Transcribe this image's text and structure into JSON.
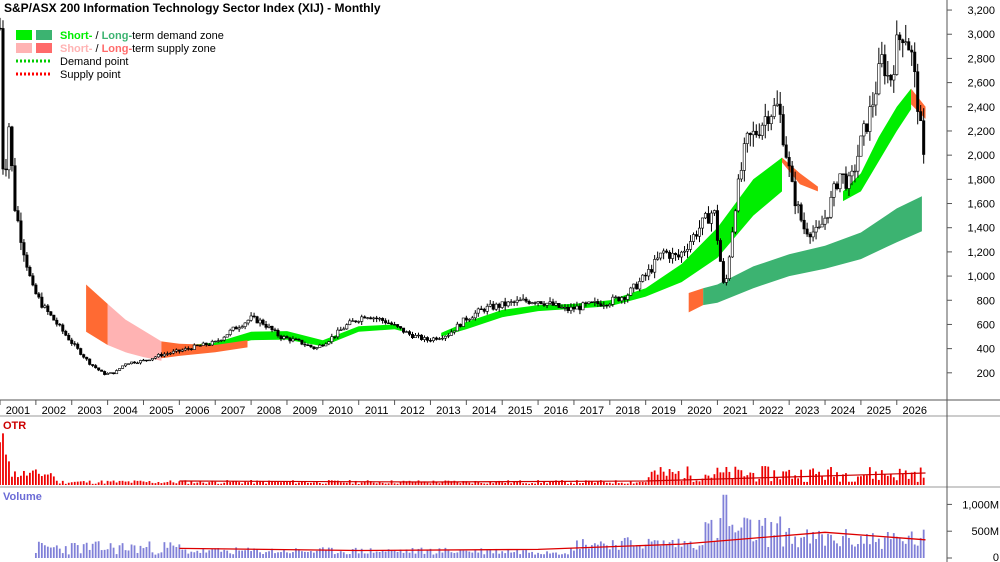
{
  "chart_data": {
    "type": "line",
    "title": "S&P/ASX 200 Information Technology Sector Index (XIJ) - Monthly",
    "legend": [
      {
        "label_a": "Short-",
        "sep": " / ",
        "label_b": "Long-",
        "label_c": "term demand zone",
        "color_short": "#00ee00",
        "color_long": "#3cb371"
      },
      {
        "label_a": "Short-",
        "sep": " / ",
        "label_b": "Long-",
        "label_c": "term supply zone",
        "color_short": "#ffb3b3",
        "color_long": "#ff6a6a"
      },
      {
        "label": "Demand point",
        "color": "#00cc00"
      },
      {
        "label": "Supply point",
        "color": "#ff0000"
      }
    ],
    "legend_placement": "top-left",
    "x_ticks": [
      "2001",
      "2002",
      "2003",
      "2004",
      "2005",
      "2006",
      "2007",
      "2008",
      "2009",
      "2010",
      "2011",
      "2012",
      "2013",
      "2014",
      "2015",
      "2016",
      "2017",
      "2018",
      "2019",
      "2020",
      "2021",
      "2022",
      "2023",
      "2024",
      "2025",
      "2026"
    ],
    "xlim": [
      2000.0,
      2026.4
    ],
    "y_ticks": [
      "200",
      "400",
      "600",
      "800",
      "1,000",
      "1,200",
      "1,400",
      "1,600",
      "1,800",
      "2,000",
      "2,200",
      "2,400",
      "2,600",
      "2,800",
      "3,000",
      "3,200"
    ],
    "ylim": [
      0,
      3250
    ],
    "price_path": [
      [
        2000.0,
        3050
      ],
      [
        2000.1,
        1700
      ],
      [
        2000.25,
        2250
      ],
      [
        2000.4,
        1600
      ],
      [
        2000.6,
        1300
      ],
      [
        2000.9,
        900
      ],
      [
        2001.2,
        750
      ],
      [
        2001.6,
        600
      ],
      [
        2002.0,
        450
      ],
      [
        2002.5,
        280
      ],
      [
        2002.9,
        190
      ],
      [
        2003.2,
        200
      ],
      [
        2003.5,
        280
      ],
      [
        2004.0,
        300
      ],
      [
        2004.5,
        350
      ],
      [
        2005.0,
        380
      ],
      [
        2005.5,
        420
      ],
      [
        2006.0,
        450
      ],
      [
        2006.5,
        560
      ],
      [
        2007.0,
        650
      ],
      [
        2007.3,
        620
      ],
      [
        2007.8,
        500
      ],
      [
        2008.3,
        460
      ],
      [
        2008.8,
        400
      ],
      [
        2009.2,
        480
      ],
      [
        2009.7,
        600
      ],
      [
        2010.2,
        680
      ],
      [
        2010.8,
        620
      ],
      [
        2011.4,
        520
      ],
      [
        2011.9,
        470
      ],
      [
        2012.5,
        520
      ],
      [
        2013.0,
        650
      ],
      [
        2013.5,
        730
      ],
      [
        2014.0,
        760
      ],
      [
        2014.5,
        790
      ],
      [
        2015.0,
        800
      ],
      [
        2015.3,
        770
      ],
      [
        2015.8,
        720
      ],
      [
        2016.4,
        760
      ],
      [
        2017.0,
        790
      ],
      [
        2017.5,
        850
      ],
      [
        2018.0,
        1000
      ],
      [
        2018.5,
        1200
      ],
      [
        2018.9,
        1150
      ],
      [
        2019.5,
        1400
      ],
      [
        2019.9,
        1550
      ],
      [
        2020.2,
        850
      ],
      [
        2020.5,
        1600
      ],
      [
        2020.8,
        2100
      ],
      [
        2021.1,
        2200
      ],
      [
        2021.4,
        2350
      ],
      [
        2021.7,
        2400
      ],
      [
        2021.9,
        2050
      ],
      [
        2022.1,
        1700
      ],
      [
        2022.4,
        1400
      ],
      [
        2022.8,
        1350
      ],
      [
        2023.1,
        1550
      ],
      [
        2023.4,
        1850
      ],
      [
        2023.7,
        1750
      ],
      [
        2024.0,
        2100
      ],
      [
        2024.3,
        2400
      ],
      [
        2024.6,
        2800
      ],
      [
        2024.8,
        2600
      ],
      [
        2025.0,
        2900
      ],
      [
        2025.2,
        3050
      ],
      [
        2025.4,
        2850
      ],
      [
        2025.6,
        2400
      ],
      [
        2025.8,
        1800
      ]
    ],
    "series": [
      {
        "zone": "short-term demand",
        "color": "#00ee00",
        "x": [
          2004.9,
          2006.0,
          2007.0,
          2008.0,
          2009.0,
          2010.0,
          2011.0,
          2011.2
        ],
        "upper": [
          420,
          450,
          540,
          545,
          470,
          585,
          600,
          580
        ],
        "lower": [
          370,
          400,
          470,
          475,
          420,
          540,
          560,
          545
        ]
      },
      {
        "zone": "short-term demand",
        "color": "#00ee00",
        "x": [
          2012.3,
          2013.0,
          2014.0,
          2015.0,
          2016.0,
          2017.0,
          2018.0,
          2019.0,
          2020.0,
          2021.0,
          2021.8
        ],
        "upper": [
          530,
          620,
          720,
          760,
          770,
          800,
          900,
          1100,
          1400,
          1800,
          1980
        ],
        "lower": [
          500,
          560,
          660,
          710,
          730,
          750,
          830,
          950,
          1150,
          1500,
          1700
        ]
      },
      {
        "zone": "short-term demand",
        "color": "#00ee00",
        "x": [
          2023.5,
          2024.0,
          2024.5,
          2025.0,
          2025.4
        ],
        "upper": [
          1700,
          1850,
          2150,
          2400,
          2550
        ],
        "lower": [
          1620,
          1700,
          1950,
          2200,
          2380
        ]
      },
      {
        "zone": "long-term demand",
        "color": "#3cb371",
        "x": [
          2019.6,
          2020.0,
          2021.0,
          2022.0,
          2023.0,
          2024.0,
          2025.0,
          2025.7
        ],
        "upper": [
          900,
          930,
          1080,
          1180,
          1250,
          1360,
          1560,
          1660
        ],
        "lower": [
          760,
          780,
          900,
          1000,
          1060,
          1140,
          1280,
          1370
        ]
      },
      {
        "zone": "long-term supply",
        "color": "#ffb3b3",
        "x": [
          2003.0,
          2003.5,
          2004.0,
          2004.5
        ],
        "upper": [
          770,
          640,
          550,
          460
        ],
        "lower": [
          430,
          370,
          330,
          300
        ]
      },
      {
        "zone": "short-term supply",
        "color": "#ff6a33",
        "x": [
          2002.4,
          2003.0
        ],
        "upper": [
          930,
          770
        ],
        "lower": [
          540,
          430
        ]
      },
      {
        "zone": "short-term supply",
        "color": "#ff6a33",
        "x": [
          2004.5,
          2005.0,
          2006.0,
          2006.9
        ],
        "upper": [
          460,
          440,
          430,
          470
        ],
        "lower": [
          320,
          340,
          370,
          410
        ]
      },
      {
        "zone": "short-term supply",
        "color": "#ff6a33",
        "x": [
          2021.8,
          2022.3,
          2022.8
        ],
        "upper": [
          1980,
          1850,
          1740
        ],
        "lower": [
          1940,
          1760,
          1700
        ]
      },
      {
        "zone": "short-term supply",
        "color": "#ff6a33",
        "x": [
          2019.2,
          2019.6
        ],
        "upper": [
          860,
          900
        ],
        "lower": [
          700,
          760
        ]
      },
      {
        "zone": "short-term supply",
        "color": "#ff6a33",
        "x": [
          2025.4,
          2025.8
        ],
        "upper": [
          2550,
          2400
        ],
        "lower": [
          2420,
          2300
        ]
      }
    ],
    "otr": {
      "label": "OTR",
      "label_color": "#cc0000",
      "bar_color": "#ee0000",
      "avg_line_color": "#cc0000"
    },
    "volume": {
      "label": "Volume",
      "label_color": "#6b6bd6",
      "bar_color": "#8080d8",
      "avg_line_color": "#dd0000",
      "y_ticks": [
        "1,000M",
        "500M",
        "0"
      ],
      "ylim": [
        0,
        1250
      ]
    }
  }
}
